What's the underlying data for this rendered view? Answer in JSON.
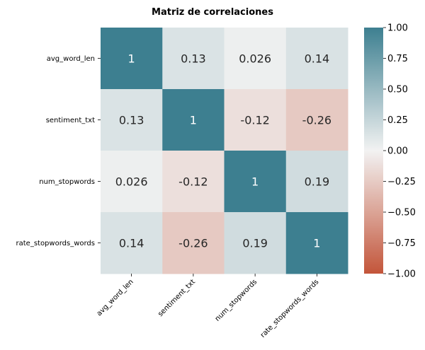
{
  "chart_data": {
    "type": "heatmap",
    "title": "Matriz de correlaciones",
    "xlabel": "",
    "ylabel": "",
    "row_labels": [
      "avg_word_len",
      "sentiment_txt",
      "num_stopwords",
      "rate_stopwords_words"
    ],
    "col_labels": [
      "avg_word_len",
      "sentiment_txt",
      "num_stopwords",
      "rate_stopwords_words"
    ],
    "values": [
      [
        1,
        0.13,
        0.026,
        0.14
      ],
      [
        0.13,
        1,
        -0.12,
        -0.26
      ],
      [
        0.026,
        -0.12,
        1,
        0.19
      ],
      [
        0.14,
        -0.26,
        0.19,
        1
      ]
    ],
    "value_labels": [
      [
        "1",
        "0.13",
        "0.026",
        "0.14"
      ],
      [
        "0.13",
        "1",
        "-0.12",
        "-0.26"
      ],
      [
        "0.026",
        "-0.12",
        "1",
        "0.19"
      ],
      [
        "0.14",
        "-0.26",
        "0.19",
        "1"
      ]
    ],
    "colorbar": {
      "range": [
        -1,
        1
      ],
      "ticks": [
        1.0,
        0.75,
        0.5,
        0.25,
        0.0,
        -0.25,
        -0.5,
        -0.75,
        -1.0
      ],
      "tick_labels": [
        "1.00",
        "0.75",
        "0.50",
        "0.25",
        "0.00",
        "−0.25",
        "−0.50",
        "−0.75",
        "−1.00"
      ],
      "colors": {
        "low": "#c3553a",
        "mid": "#f2f2f2",
        "high": "#3d7f90"
      }
    },
    "grid": false,
    "legend": "colorbar-right"
  }
}
